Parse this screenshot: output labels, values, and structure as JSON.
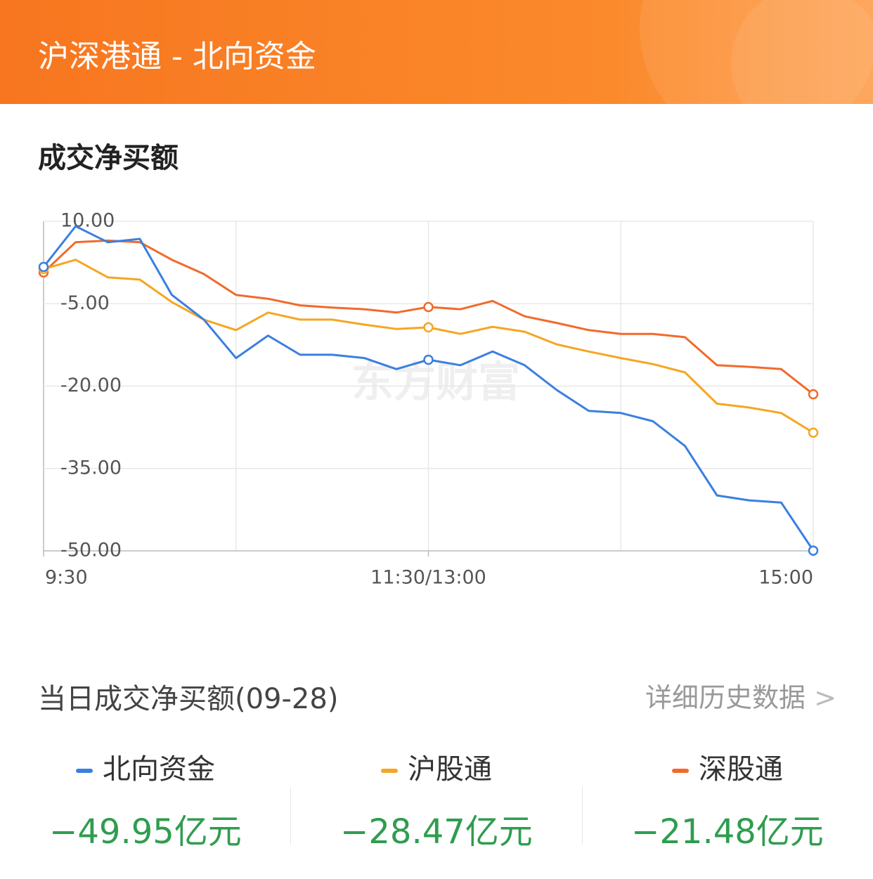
{
  "header": {
    "title": "沪深港通 - 北向资金"
  },
  "section_title": "成交净买额",
  "chart_data": {
    "type": "line",
    "watermark": "东方财富",
    "categories": [
      "9:30",
      null,
      null,
      null,
      null,
      null,
      null,
      null,
      null,
      null,
      null,
      null,
      "11:30/13:00",
      null,
      null,
      null,
      null,
      null,
      null,
      null,
      null,
      null,
      null,
      null,
      "15:00"
    ],
    "series": [
      {
        "name": "北向资金",
        "color": "#3a7fe0",
        "values": [
          1.7,
          9.1,
          6.2,
          6.8,
          -3.4,
          -7.9,
          -14.9,
          -10.8,
          -14.3,
          -14.3,
          -14.9,
          -16.9,
          -15.2,
          -16.2,
          -13.7,
          -16.2,
          -20.7,
          -24.5,
          -24.9,
          -26.4,
          -30.9,
          -39.9,
          -40.8,
          -41.2,
          -49.95
        ]
      },
      {
        "name": "沪股通",
        "color": "#f5a623",
        "values": [
          1.3,
          3.0,
          -0.2,
          -0.6,
          -4.7,
          -7.9,
          -9.8,
          -6.6,
          -7.9,
          -7.9,
          -8.8,
          -9.6,
          -9.3,
          -10.5,
          -9.2,
          -10.1,
          -12.4,
          -13.7,
          -14.9,
          -16.0,
          -17.5,
          -23.2,
          -23.9,
          -24.9,
          -28.47
        ]
      },
      {
        "name": "深股通",
        "color": "#f26a2a",
        "values": [
          0.7,
          6.2,
          6.5,
          6.2,
          3.0,
          0.4,
          -3.4,
          -4.1,
          -5.3,
          -5.7,
          -6.0,
          -6.6,
          -5.6,
          -6.0,
          -4.5,
          -7.3,
          -8.5,
          -9.8,
          -10.5,
          -10.5,
          -11.1,
          -16.2,
          -16.5,
          -16.9,
          -21.48
        ]
      }
    ],
    "ylim": [
      -50,
      10
    ],
    "yticks": [
      {
        "value": 10,
        "label": "10.00"
      },
      {
        "value": -5,
        "label": "-5.00"
      },
      {
        "value": -20,
        "label": "-20.00"
      },
      {
        "value": -35,
        "label": "-35.00"
      },
      {
        "value": -50,
        "label": "-50.00"
      }
    ],
    "grid": true
  },
  "summary": {
    "title": "当日成交净买额(09-28)",
    "link": "详细历史数据",
    "totals": [
      "−49.95亿元",
      "−28.47亿元",
      "−21.48亿元"
    ]
  }
}
